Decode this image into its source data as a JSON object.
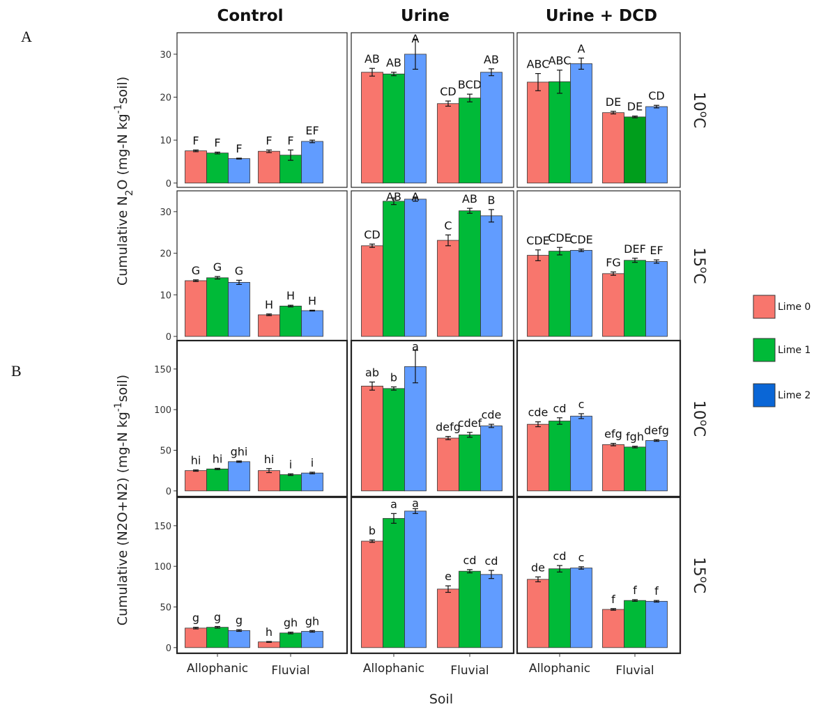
{
  "figure": {
    "label_a": "A",
    "label_b": "B"
  },
  "colors": {
    "lime0": "#F8766D",
    "lime1": "#00BA38",
    "lime2": "#619CFF",
    "lime1_dcd_fluvial_10": "#009E1C",
    "legend_lime2": "#0A66D6"
  },
  "chart_data": {
    "type": "bar",
    "x_title": "Soil",
    "columns": [
      "Control",
      "Urine",
      "Urine + DCD"
    ],
    "categories": [
      "Allophanic",
      "Fluvial"
    ],
    "legend": [
      "Lime 0",
      "Lime 1",
      "Lime 2"
    ],
    "legend_placement": "right",
    "grid": false,
    "panels_a": {
      "y_title_prefix": "Cumulative N",
      "y_title_sub": "2",
      "y_title_mid": "O (mg-N kg",
      "y_title_sup": "-1",
      "y_title_suffix": "soil)",
      "ylim": [
        -1,
        35
      ],
      "ticks": [
        0,
        10,
        20,
        30
      ],
      "rows": [
        {
          "temp": "10",
          "temp_unit": "C",
          "cells": [
            {
              "values": [
                [
                  7.5,
                  7.0,
                  5.7
                ],
                [
                  7.4,
                  6.5,
                  9.7
                ]
              ],
              "errors": [
                [
                  0.2,
                  0.2,
                  0.1
                ],
                [
                  0.3,
                  1.2,
                  0.3
                ]
              ],
              "labels": [
                [
                  "F",
                  "F",
                  "F"
                ],
                [
                  "F",
                  "F",
                  "EF"
                ]
              ]
            },
            {
              "values": [
                [
                  25.8,
                  25.4,
                  30.0
                ],
                [
                  18.5,
                  19.8,
                  25.8
                ]
              ],
              "errors": [
                [
                  0.9,
                  0.4,
                  3.5
                ],
                [
                  0.6,
                  0.9,
                  0.8
                ]
              ],
              "labels": [
                [
                  "AB",
                  "AB",
                  "A"
                ],
                [
                  "CD",
                  "BCD",
                  "AB"
                ]
              ]
            },
            {
              "values": [
                [
                  23.5,
                  23.6,
                  27.8
                ],
                [
                  16.4,
                  15.4,
                  17.8
                ]
              ],
              "errors": [
                [
                  2.0,
                  2.7,
                  1.3
                ],
                [
                  0.3,
                  0.2,
                  0.3
                ]
              ],
              "labels": [
                [
                  "ABC",
                  "ABC",
                  "A"
                ],
                [
                  "DE",
                  "DE",
                  "CD"
                ]
              ]
            }
          ]
        },
        {
          "temp": "15",
          "temp_unit": "C",
          "cells": [
            {
              "values": [
                [
                  13.4,
                  14.1,
                  13.0
                ],
                [
                  5.2,
                  7.3,
                  6.2
                ]
              ],
              "errors": [
                [
                  0.2,
                  0.3,
                  0.5
                ],
                [
                  0.2,
                  0.2,
                  0.1
                ]
              ],
              "labels": [
                [
                  "G",
                  "G",
                  "G"
                ],
                [
                  "H",
                  "H",
                  "H"
                ]
              ]
            },
            {
              "values": [
                [
                  21.8,
                  32.5,
                  33.0
                ],
                [
                  23.1,
                  30.2,
                  29.0
                ]
              ],
              "errors": [
                [
                  0.4,
                  0.8,
                  0.5
                ],
                [
                  1.3,
                  0.6,
                  1.5
                ]
              ],
              "labels": [
                [
                  "CD",
                  "AB",
                  "A"
                ],
                [
                  "C",
                  "AB",
                  "B"
                ]
              ]
            },
            {
              "values": [
                [
                  19.5,
                  20.5,
                  20.7
                ],
                [
                  15.1,
                  18.3,
                  18.0
                ]
              ],
              "errors": [
                [
                  1.3,
                  0.9,
                  0.3
                ],
                [
                  0.4,
                  0.5,
                  0.4
                ]
              ],
              "labels": [
                [
                  "CDE",
                  "CDE",
                  "CDE"
                ],
                [
                  "FG",
                  "DEF",
                  "EF"
                ]
              ]
            }
          ]
        }
      ]
    },
    "panels_b": {
      "y_title_prefix": "Cumulative (N2O+N2) (mg-N kg",
      "y_title_sup": "-1",
      "y_title_suffix": "soil)",
      "ylim": [
        -7,
        185
      ],
      "ticks": [
        0,
        50,
        100,
        150
      ],
      "rows": [
        {
          "temp": "10",
          "temp_unit": "C",
          "cells": [
            {
              "values": [
                [
                  25,
                  27,
                  36
                ],
                [
                  25,
                  20,
                  22
                ]
              ],
              "errors": [
                [
                  0.8,
                  0.8,
                  0.8
                ],
                [
                  2.5,
                  1.0,
                  1.0
                ]
              ],
              "labels": [
                [
                  "hi",
                  "hi",
                  "ghi"
                ],
                [
                  "hi",
                  "i",
                  "i"
                ]
              ]
            },
            {
              "values": [
                [
                  129,
                  126,
                  153
                ],
                [
                  65,
                  69,
                  80
                ]
              ],
              "errors": [
                [
                  5,
                  2,
                  20
                ],
                [
                  2,
                  3,
                  2
                ]
              ],
              "labels": [
                [
                  "ab",
                  "b",
                  "a"
                ],
                [
                  "defg",
                  "cdef",
                  "cde"
                ]
              ]
            },
            {
              "values": [
                [
                  82,
                  86,
                  92
                ],
                [
                  57,
                  54,
                  62
                ]
              ],
              "errors": [
                [
                  3,
                  4,
                  3
                ],
                [
                  1.5,
                  1,
                  1
                ]
              ],
              "labels": [
                [
                  "cde",
                  "cd",
                  "c"
                ],
                [
                  "efg",
                  "fgh",
                  "defg"
                ]
              ]
            }
          ]
        },
        {
          "temp": "15",
          "temp_unit": "C",
          "cells": [
            {
              "values": [
                [
                  24,
                  25,
                  21
                ],
                [
                  7,
                  18,
                  20
                ]
              ],
              "errors": [
                [
                  1,
                  1,
                  1
                ],
                [
                  0.5,
                  1,
                  1
                ]
              ],
              "labels": [
                [
                  "g",
                  "g",
                  "g"
                ],
                [
                  "h",
                  "gh",
                  "gh"
                ]
              ]
            },
            {
              "values": [
                [
                  131,
                  159,
                  168
                ],
                [
                  72,
                  94,
                  90
                ]
              ],
              "errors": [
                [
                  1.5,
                  6,
                  3
                ],
                [
                  4,
                  2,
                  5
                ]
              ],
              "labels": [
                [
                  "b",
                  "a",
                  "a"
                ],
                [
                  "e",
                  "cd",
                  "cd"
                ]
              ]
            },
            {
              "values": [
                [
                  84,
                  97,
                  98
                ],
                [
                  47,
                  58,
                  57
                ]
              ],
              "errors": [
                [
                  3,
                  4,
                  1.5
                ],
                [
                  1,
                  1,
                  1
                ]
              ],
              "labels": [
                [
                  "de",
                  "cd",
                  "c"
                ],
                [
                  "f",
                  "f",
                  "f"
                ]
              ]
            }
          ]
        }
      ]
    }
  }
}
